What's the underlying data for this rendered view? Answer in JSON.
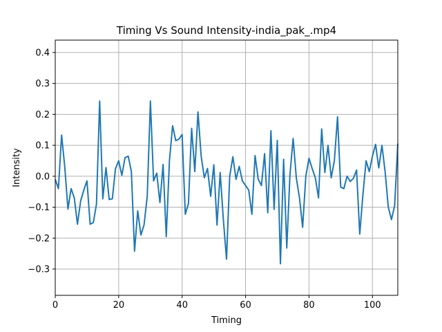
{
  "chart_data": {
    "type": "line",
    "title": "Timing Vs Sound Intensity-india_pak_.mp4",
    "xlabel": "Timing",
    "ylabel": "Intensity",
    "xlim": [
      0,
      108
    ],
    "ylim": [
      -0.385,
      0.44
    ],
    "xticks": [
      0,
      20,
      40,
      60,
      80,
      100
    ],
    "yticks": [
      -0.3,
      -0.2,
      -0.1,
      0.0,
      0.1,
      0.2,
      0.3,
      0.4
    ],
    "xtick_labels": [
      "0",
      "20",
      "40",
      "60",
      "80",
      "100"
    ],
    "ytick_labels": [
      "−0.3",
      "−0.2",
      "−0.1",
      "0.0",
      "0.1",
      "0.2",
      "0.3",
      "0.4"
    ],
    "grid": true,
    "color": "#1f77b4",
    "x": [
      0,
      1,
      2,
      3,
      4,
      5,
      6,
      7,
      8,
      9,
      10,
      11,
      12,
      13,
      14,
      15,
      16,
      17,
      18,
      19,
      20,
      21,
      22,
      23,
      24,
      25,
      26,
      27,
      28,
      29,
      30,
      31,
      32,
      33,
      34,
      35,
      36,
      37,
      38,
      39,
      40,
      41,
      42,
      43,
      44,
      45,
      46,
      47,
      48,
      49,
      50,
      51,
      52,
      53,
      54,
      55,
      56,
      57,
      58,
      59,
      60,
      61,
      62,
      63,
      64,
      65,
      66,
      67,
      68,
      69,
      70,
      71,
      72,
      73,
      74,
      75,
      76,
      77,
      78,
      79,
      80,
      81,
      82,
      83,
      84,
      85,
      86,
      87,
      88,
      89,
      90,
      91,
      92,
      93,
      94,
      95,
      96,
      97,
      98,
      99,
      100,
      101,
      102,
      103,
      104,
      105,
      106,
      107,
      108
    ],
    "y": [
      -0.01,
      -0.04,
      0.133,
      0.03,
      -0.106,
      -0.04,
      -0.07,
      -0.155,
      -0.08,
      -0.045,
      -0.015,
      -0.155,
      -0.15,
      -0.09,
      0.243,
      -0.073,
      0.028,
      -0.075,
      -0.073,
      0.025,
      0.05,
      0.003,
      0.06,
      0.065,
      0.015,
      -0.242,
      -0.112,
      -0.19,
      -0.157,
      -0.065,
      0.243,
      -0.015,
      0.01,
      -0.085,
      0.038,
      -0.195,
      0.05,
      0.163,
      0.115,
      0.12,
      0.135,
      -0.123,
      -0.088,
      0.155,
      0.015,
      0.208,
      0.065,
      -0.005,
      0.025,
      -0.065,
      0.037,
      -0.158,
      0.012,
      -0.14,
      -0.268,
      0.0,
      0.063,
      -0.01,
      0.032,
      -0.015,
      -0.03,
      -0.045,
      -0.123,
      0.067,
      -0.01,
      -0.03,
      0.073,
      -0.118,
      0.147,
      -0.107,
      0.116,
      -0.283,
      0.055,
      -0.232,
      0.005,
      0.122,
      -0.005,
      -0.07,
      -0.165,
      0.0,
      0.058,
      0.025,
      -0.005,
      -0.07,
      0.153,
      0.012,
      0.1,
      -0.005,
      0.05,
      0.192,
      -0.035,
      -0.04,
      0.0,
      -0.017,
      -0.007,
      0.02,
      -0.187,
      -0.06,
      0.05,
      0.015,
      0.065,
      0.103,
      0.027,
      0.1,
      0.015,
      -0.1,
      -0.14,
      -0.095,
      0.105
    ]
  }
}
